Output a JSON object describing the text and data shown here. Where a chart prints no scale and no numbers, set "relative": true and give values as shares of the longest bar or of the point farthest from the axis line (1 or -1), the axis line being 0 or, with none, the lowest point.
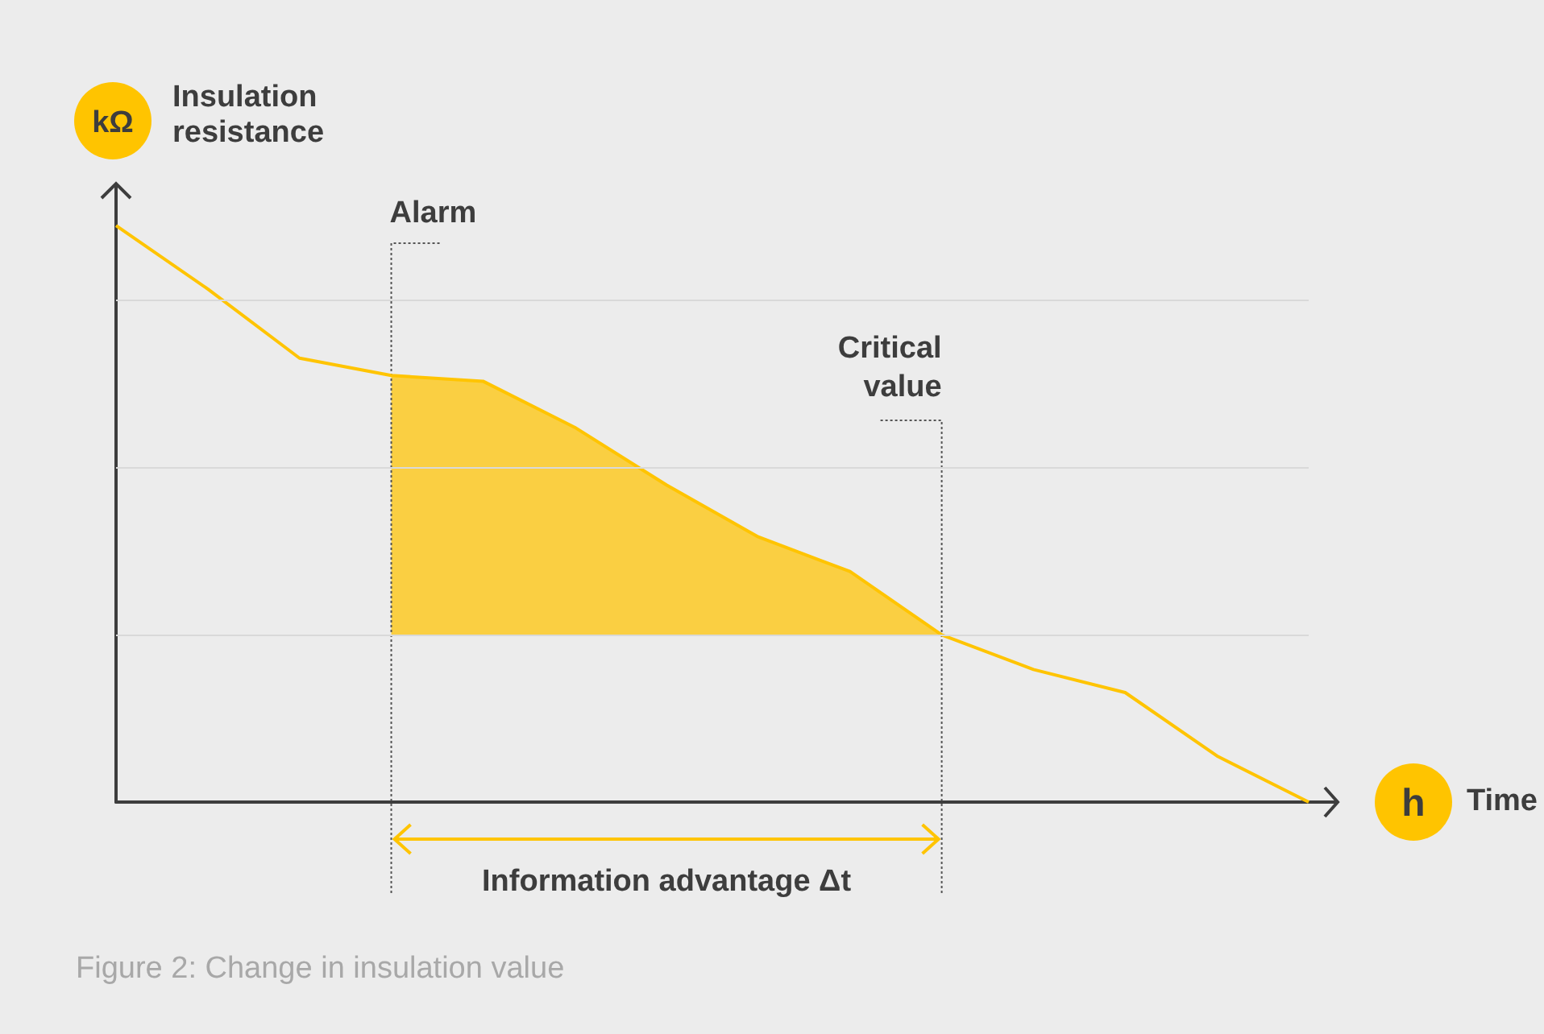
{
  "chart_data": {
    "type": "line",
    "relative": true,
    "ylabel": "Insulation resistance",
    "categories": [
      null,
      null,
      null,
      null,
      null,
      null,
      null,
      null,
      null,
      null,
      null,
      null,
      null,
      null
    ],
    "series": [
      {
        "color": "#ffc400",
        "values": [
          1,
          0.89,
          0.77,
          0.74,
          0.73,
          0.65,
          0.55,
          0.46,
          0.4,
          0.29,
          0.23,
          0.19,
          0.08,
          0
        ],
        "lower": [
          null,
          null,
          null,
          0.29,
          0.29,
          0.29,
          0.29,
          0.29,
          0.29,
          0.29,
          null,
          null,
          null,
          null
        ],
        "upper": [
          null,
          null,
          null,
          0.74,
          0.73,
          0.65,
          0.55,
          0.46,
          0.4,
          0.29,
          null,
          null,
          null,
          null
        ]
      }
    ],
    "ref_lines": [
      {
        "axis": "y",
        "value": 0.87,
        "color": "#d9d9d9"
      },
      {
        "axis": "y",
        "value": 0.58,
        "color": "#d9d9d9"
      },
      {
        "axis": "y",
        "value": 0.29,
        "color": "#d9d9d9"
      }
    ],
    "annotations": [
      "kΩ",
      "h",
      "Information advantage Δt",
      "Figure 2: Change in insulation value",
      "Alarm",
      "Critical value",
      "Time"
    ],
    "marker": "none",
    "line_style": "solid"
  }
}
